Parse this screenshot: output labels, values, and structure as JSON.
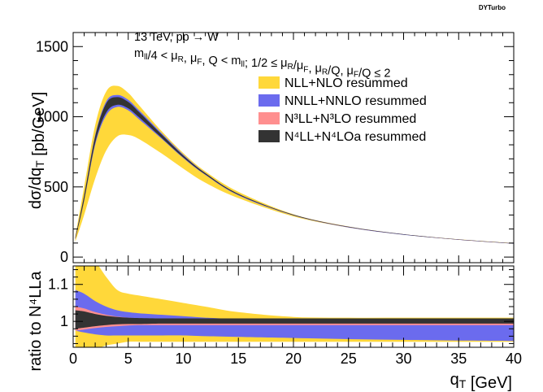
{
  "brand": "DYTurbo",
  "annotations": {
    "line1": "13 TeV, pp → W",
    "line2": "m_ll/4 < μ_R, μ_F, Q < m_ll; 1/2 ≤ μ_R/μ_F, μ_R/Q, μ_F/Q ≤ 2"
  },
  "legend": [
    {
      "label": "NLL+NLO resummed",
      "color": "#ffd83a"
    },
    {
      "label": "NNLL+NNLO resummed",
      "color": "#6b6bee"
    },
    {
      "label": "N³LL+N³LO resummed",
      "color": "#ff8f8f"
    },
    {
      "label": "N⁴LL+N⁴LOa resummed",
      "color": "#333333"
    }
  ],
  "chart_data": [
    {
      "type": "area",
      "panel": "main",
      "ylabel": "dσ/dq_T [pb/GeV]",
      "xlim": [
        0,
        40
      ],
      "ylim": [
        -40,
        1600
      ],
      "yticks": [
        0,
        500,
        1000,
        1500
      ],
      "x": [
        0.2,
        1,
        2,
        3,
        4,
        5,
        6,
        8,
        10,
        12,
        15,
        20,
        25,
        30,
        35,
        40
      ],
      "series": [
        {
          "name": "NLL+NLO resummed",
          "color": "#ffd83a",
          "lower": [
            110,
            300,
            560,
            760,
            860,
            870,
            840,
            740,
            630,
            530,
            420,
            290,
            210,
            160,
            125,
            98
          ],
          "upper": [
            150,
            500,
            940,
            1180,
            1220,
            1170,
            1080,
            900,
            740,
            610,
            465,
            305,
            218,
            163,
            127,
            100
          ]
        },
        {
          "name": "NNLL+NNLO resummed",
          "color": "#6b6bee",
          "lower": [
            125,
            400,
            800,
            1010,
            1070,
            1045,
            980,
            845,
            705,
            585,
            440,
            296,
            211,
            159,
            123,
            95
          ],
          "upper": [
            140,
            440,
            870,
            1110,
            1155,
            1120,
            1045,
            885,
            730,
            600,
            450,
            302,
            216,
            163,
            126,
            98
          ]
        },
        {
          "name": "N³LL+N³LO resummed",
          "color": "#ff8f8f",
          "lower": [
            130,
            410,
            820,
            1040,
            1095,
            1068,
            1000,
            855,
            712,
            590,
            445,
            299,
            213,
            161,
            124,
            96
          ],
          "upper": [
            138,
            430,
            855,
            1080,
            1130,
            1098,
            1027,
            873,
            722,
            597,
            449,
            301,
            215,
            162,
            125,
            97
          ]
        },
        {
          "name": "N⁴LL+N⁴LOa resummed",
          "color": "#333333",
          "lower": [
            128,
            405,
            815,
            1030,
            1085,
            1060,
            995,
            852,
            710,
            589,
            444,
            298,
            213,
            160,
            124,
            96
          ],
          "upper": [
            140,
            440,
            860,
            1095,
            1140,
            1105,
            1032,
            876,
            724,
            598,
            450,
            302,
            216,
            163,
            126,
            98
          ]
        }
      ]
    },
    {
      "type": "area",
      "panel": "ratio",
      "ylabel": "ratio to N⁴LLa",
      "xlabel": "q_T [GeV]",
      "xlim": [
        0,
        40
      ],
      "ylim": [
        0.93,
        1.15
      ],
      "yticks": [
        1,
        1.1
      ],
      "xticks": [
        0,
        5,
        10,
        15,
        20,
        25,
        30,
        35,
        40
      ],
      "x": [
        0.2,
        1,
        2,
        3,
        4,
        5,
        6,
        8,
        10,
        12,
        15,
        20,
        25,
        30,
        35,
        40
      ],
      "series": [
        {
          "name": "NLL+NLO resummed",
          "color": "#ffd83a",
          "lower": [
            0.92,
            0.92,
            0.925,
            0.935,
            0.94,
            0.945,
            0.945,
            0.945,
            0.945,
            0.945,
            0.945,
            0.945,
            0.945,
            0.945,
            0.945,
            0.945
          ],
          "upper": [
            1.16,
            1.16,
            1.16,
            1.12,
            1.085,
            1.075,
            1.07,
            1.06,
            1.05,
            1.04,
            1.025,
            1.012,
            1.01,
            1.01,
            1.01,
            1.01
          ]
        },
        {
          "name": "NNLL+NNLO resummed",
          "color": "#6b6bee",
          "lower": [
            0.975,
            0.97,
            0.965,
            0.962,
            0.962,
            0.962,
            0.962,
            0.962,
            0.962,
            0.96,
            0.958,
            0.955,
            0.952,
            0.95,
            0.948,
            0.947
          ],
          "upper": [
            1.085,
            1.075,
            1.055,
            1.04,
            1.03,
            1.025,
            1.022,
            1.018,
            1.014,
            1.01,
            1.006,
            1.0,
            1.0,
            1.0,
            1.0,
            1.0
          ]
        },
        {
          "name": "N³LL+N³LO resummed",
          "color": "#ff8f8f",
          "lower": [
            0.975,
            0.978,
            0.982,
            0.985,
            0.987,
            0.989,
            0.99,
            0.99,
            0.99,
            0.99,
            0.99,
            0.99,
            0.99,
            0.99,
            0.99,
            0.99
          ],
          "upper": [
            1.04,
            1.035,
            1.025,
            1.018,
            1.013,
            1.01,
            1.008,
            1.006,
            1.005,
            1.004,
            1.003,
            1.002,
            1.002,
            1.002,
            1.002,
            1.002
          ]
        },
        {
          "name": "N⁴LL+N⁴LOa resummed",
          "color": "#333333",
          "lower": [
            0.98,
            0.983,
            0.987,
            0.99,
            0.992,
            0.993,
            0.993,
            0.994,
            0.994,
            0.994,
            0.994,
            0.994,
            0.994,
            0.994,
            0.994,
            0.994
          ],
          "upper": [
            1.03,
            1.027,
            1.02,
            1.015,
            1.012,
            1.01,
            1.009,
            1.008,
            1.008,
            1.008,
            1.008,
            1.008,
            1.008,
            1.008,
            1.008,
            1.008
          ]
        }
      ]
    }
  ]
}
